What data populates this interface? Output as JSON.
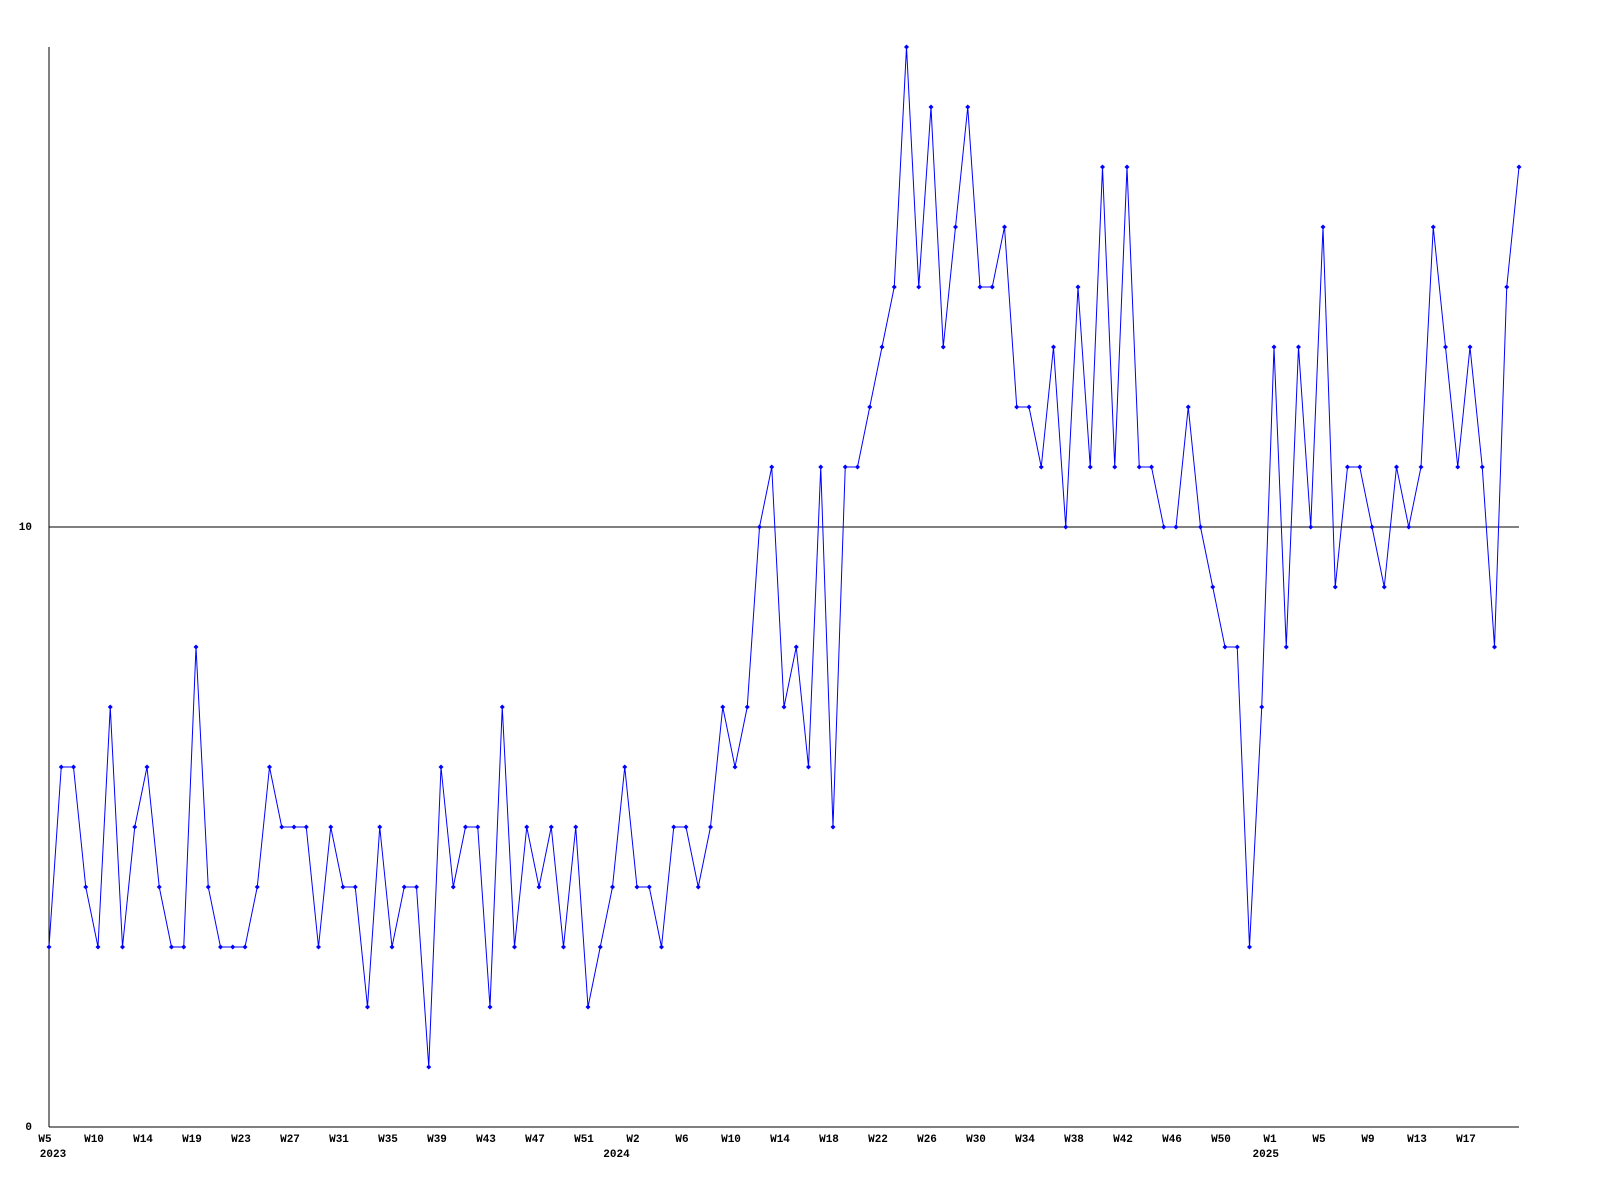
{
  "chart_data": {
    "type": "line",
    "color": "#0000ff",
    "categories": [
      "W5",
      null,
      null,
      null,
      "W10",
      null,
      null,
      null,
      "W14",
      null,
      null,
      null,
      "W19",
      null,
      null,
      null,
      "W23",
      null,
      null,
      null,
      "W27",
      null,
      null,
      null,
      "W31",
      null,
      null,
      null,
      "W35",
      null,
      null,
      null,
      "W39",
      null,
      null,
      null,
      "W43",
      null,
      null,
      null,
      "W47",
      null,
      null,
      null,
      "W51",
      null,
      null,
      null,
      "W2",
      null,
      null,
      null,
      "W6",
      null,
      null,
      null,
      "W10",
      null,
      null,
      null,
      "W14",
      null,
      null,
      null,
      "W18",
      null,
      null,
      null,
      "W22",
      null,
      null,
      null,
      "W26",
      null,
      null,
      null,
      "W30",
      null,
      null,
      null,
      "W34",
      null,
      null,
      null,
      "W38",
      null,
      null,
      null,
      "W42",
      null,
      null,
      null,
      "W46",
      null,
      null,
      null,
      "W50",
      null,
      null,
      null,
      "W1",
      null,
      null,
      null,
      "W5",
      null,
      null,
      null,
      "W9",
      null,
      null,
      null,
      "W13",
      null,
      null,
      null,
      "W17",
      null,
      null,
      null,
      null
    ],
    "year_labels": [
      {
        "label": "2023",
        "index": 0
      },
      {
        "label": "2024",
        "index": 46
      },
      {
        "label": "2025",
        "index": 99
      }
    ],
    "values": [
      3,
      6,
      6,
      4,
      3,
      7,
      3,
      5,
      6,
      4,
      3,
      3,
      8,
      4,
      3,
      3,
      3,
      4,
      6,
      5,
      5,
      5,
      3,
      5,
      4,
      4,
      2,
      5,
      3,
      4,
      4,
      1,
      6,
      4,
      5,
      5,
      2,
      7,
      3,
      5,
      4,
      5,
      3,
      5,
      2,
      3,
      4,
      6,
      4,
      4,
      3,
      5,
      5,
      4,
      5,
      7,
      6,
      7,
      10,
      11,
      7,
      8,
      6,
      11,
      5,
      11,
      11,
      12,
      13,
      14,
      18,
      14,
      17,
      13,
      15,
      17,
      14,
      14,
      15,
      12,
      12,
      11,
      13,
      10,
      14,
      11,
      16,
      11,
      16,
      11,
      11,
      10,
      10,
      12,
      10,
      9,
      8,
      8,
      3,
      7,
      13,
      8,
      13,
      10,
      15,
      9,
      11,
      11,
      10,
      9,
      11,
      10,
      11,
      15,
      13,
      11,
      13,
      11,
      8,
      14,
      16
    ],
    "ylim": [
      0,
      18
    ],
    "yticks": [
      0,
      10
    ],
    "grid": true
  }
}
